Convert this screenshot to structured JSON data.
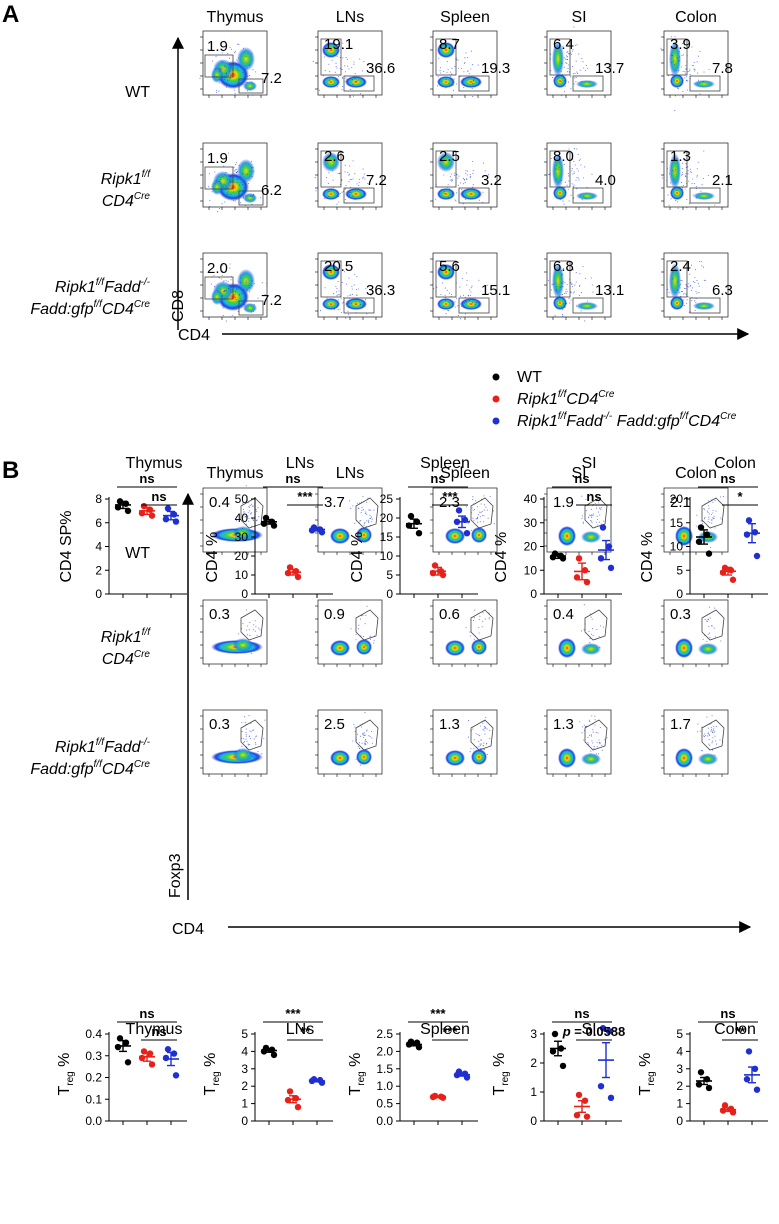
{
  "panels": [
    {
      "letter": "A",
      "tissues": [
        "Thymus",
        "LNs",
        "Spleen",
        "SI",
        "Colon"
      ],
      "rows": [
        {
          "label": [
            {
              "t": "WT"
            }
          ],
          "label2": []
        },
        {
          "label": [
            {
              "t": "Ripk1"
            },
            {
              "t": "f/f",
              "sup": true
            }
          ],
          "label2": [
            {
              "t": "CD4"
            },
            {
              "t": "Cre",
              "sup": true
            }
          ]
        },
        {
          "label": [
            {
              "t": "Ripk1"
            },
            {
              "t": "f/f",
              "sup": true
            },
            {
              "t": "Fadd"
            },
            {
              "t": "-/-",
              "sup": true
            }
          ],
          "label2": [
            {
              "t": "Fadd:gfp"
            },
            {
              "t": "f/f",
              "sup": true
            },
            {
              "t": "CD4"
            },
            {
              "t": "Cre",
              "sup": true
            }
          ]
        }
      ],
      "gate_values": [
        [
          [
            "1.9",
            "7.2"
          ],
          [
            "19.1",
            "36.6"
          ],
          [
            "8.7",
            "19.3"
          ],
          [
            "6.4",
            "13.7"
          ],
          [
            "3.9",
            "7.8"
          ]
        ],
        [
          [
            "1.9",
            "6.2"
          ],
          [
            "2.6",
            "7.2"
          ],
          [
            "2.5",
            "3.2"
          ],
          [
            "8.0",
            "4.0"
          ],
          [
            "1.3",
            "2.1"
          ]
        ],
        [
          [
            "2.0",
            "7.2"
          ],
          [
            "20.5",
            "36.3"
          ],
          [
            "5.6",
            "15.1"
          ],
          [
            "6.8",
            "13.1"
          ],
          [
            "2.4",
            "6.3"
          ]
        ]
      ],
      "y_axis_label": "CD8",
      "x_axis_label": "CD4"
    },
    {
      "letter": "B",
      "tissues": [
        "Thymus",
        "LNs",
        "Spleen",
        "SI",
        "Colon"
      ],
      "gate_values": [
        [
          "0.4",
          "3.7",
          "2.3",
          "1.9",
          "2.1"
        ],
        [
          "0.3",
          "0.9",
          "0.6",
          "0.4",
          "0.3"
        ],
        [
          "0.3",
          "2.5",
          "1.3",
          "1.3",
          "1.7"
        ]
      ],
      "y_axis_label": "Foxp3",
      "x_axis_label": "CD4"
    }
  ],
  "legend": [
    {
      "color": "#000000",
      "label": [
        {
          "t": "WT"
        }
      ]
    },
    {
      "color": "#e8201a",
      "label": [
        {
          "t": "Ripk1"
        },
        {
          "t": "f/f",
          "sup": true
        },
        {
          "t": "CD4"
        },
        {
          "t": "Cre",
          "sup": true
        }
      ]
    },
    {
      "color": "#1f2fd1",
      "label": [
        {
          "t": "Ripk1"
        },
        {
          "t": "f/f",
          "sup": true
        },
        {
          "t": "Fadd"
        },
        {
          "t": "-/-",
          "sup": true
        },
        {
          "t": " Fadd:gfp"
        },
        {
          "t": "f/f",
          "sup": true
        },
        {
          "t": "CD4"
        },
        {
          "t": "Cre",
          "sup": true
        }
      ]
    }
  ],
  "colors": {
    "wt": "#000000",
    "ripk1": "#e8201a",
    "triple": "#1f2fd1"
  },
  "chart_data": [
    {
      "type": "scatter",
      "title": "Thymus",
      "ylabel": "CD4 SP%",
      "ylim": [
        0,
        8
      ],
      "yticks": [
        0,
        2,
        4,
        6,
        8
      ],
      "groups": [
        {
          "color": "#000000",
          "points": [
            7.8,
            7.6,
            7.3,
            7.0
          ],
          "mean": 7.5,
          "sem": 0.3
        },
        {
          "color": "#e8201a",
          "points": [
            7.4,
            7.1,
            6.8,
            6.6
          ],
          "mean": 7.0,
          "sem": 0.3
        },
        {
          "color": "#1f2fd1",
          "points": [
            7.2,
            6.7,
            6.3,
            6.1
          ],
          "mean": 6.6,
          "sem": 0.35
        }
      ],
      "sig": [
        {
          "from": 0,
          "to": 2,
          "label": "ns"
        },
        {
          "from": 1,
          "to": 2,
          "label": "ns"
        }
      ]
    },
    {
      "type": "scatter",
      "title": "LNs",
      "ylabel": "CD4 %",
      "ylim": [
        0,
        50
      ],
      "yticks": [
        0,
        10,
        20,
        30,
        40,
        50
      ],
      "groups": [
        {
          "color": "#000000",
          "points": [
            40,
            38,
            37,
            36
          ],
          "mean": 38,
          "sem": 1.2
        },
        {
          "color": "#e8201a",
          "points": [
            14,
            12,
            11,
            9
          ],
          "mean": 11.5,
          "sem": 1.5
        },
        {
          "color": "#1f2fd1",
          "points": [
            35,
            34,
            33.5,
            32.5
          ],
          "mean": 34,
          "sem": 0.8
        }
      ],
      "sig": [
        {
          "from": 0,
          "to": 2,
          "label": "ns"
        },
        {
          "from": 1,
          "to": 2,
          "label": "***"
        }
      ]
    },
    {
      "type": "scatter",
      "title": "Spleen",
      "ylabel": "CD4 %",
      "ylim": [
        0,
        25
      ],
      "yticks": [
        0,
        5,
        10,
        15,
        20,
        25
      ],
      "groups": [
        {
          "color": "#000000",
          "points": [
            20.5,
            19,
            18,
            16
          ],
          "mean": 18.5,
          "sem": 1.2
        },
        {
          "color": "#e8201a",
          "points": [
            7.5,
            6,
            5.5,
            5
          ],
          "mean": 6,
          "sem": 1
        },
        {
          "color": "#1f2fd1",
          "points": [
            22,
            19.5,
            19,
            16
          ],
          "mean": 19,
          "sem": 1.5
        }
      ],
      "sig": [
        {
          "from": 0,
          "to": 2,
          "label": "ns"
        },
        {
          "from": 1,
          "to": 2,
          "label": "***"
        }
      ]
    },
    {
      "type": "scatter",
      "title": "SI",
      "ylabel": "CD4 %",
      "ylim": [
        0,
        40
      ],
      "yticks": [
        0,
        10,
        20,
        30,
        40
      ],
      "groups": [
        {
          "color": "#000000",
          "points": [
            17,
            16,
            15.5,
            15
          ],
          "mean": 16,
          "sem": 1
        },
        {
          "color": "#e8201a",
          "points": [
            15,
            10,
            7,
            5
          ],
          "mean": 9.5,
          "sem": 3.5
        },
        {
          "color": "#1f2fd1",
          "points": [
            28,
            20,
            15,
            11
          ],
          "mean": 18.5,
          "sem": 4
        }
      ],
      "sig": [
        {
          "from": 0,
          "to": 2,
          "label": "ns"
        },
        {
          "from": 1,
          "to": 2,
          "label": "ns"
        }
      ]
    },
    {
      "type": "scatter",
      "title": "Colon",
      "ylabel": "CD4 %",
      "ylim": [
        0,
        20
      ],
      "yticks": [
        0,
        5,
        10,
        15,
        20
      ],
      "groups": [
        {
          "color": "#000000",
          "points": [
            14,
            12.5,
            11,
            8.5
          ],
          "mean": 12,
          "sem": 1.5
        },
        {
          "color": "#e8201a",
          "points": [
            5.5,
            5,
            4.5,
            3
          ],
          "mean": 4.8,
          "sem": 0.8
        },
        {
          "color": "#1f2fd1",
          "points": [
            15.5,
            13,
            12.5,
            8
          ],
          "mean": 12.8,
          "sem": 2
        }
      ],
      "sig": [
        {
          "from": 0,
          "to": 2,
          "label": "ns"
        },
        {
          "from": 1,
          "to": 2,
          "label": "*"
        }
      ]
    },
    {
      "type": "scatter",
      "title": "Thymus",
      "ylabel_main": "T",
      "ylabel_sub": "reg",
      "ylabel_suffix": " %",
      "ylim": [
        0,
        0.4
      ],
      "yticks": [
        0.0,
        0.1,
        0.2,
        0.3,
        0.4
      ],
      "tickfmt": 1,
      "groups": [
        {
          "color": "#000000",
          "points": [
            0.38,
            0.36,
            0.34,
            0.27
          ],
          "mean": 0.345,
          "sem": 0.025
        },
        {
          "color": "#e8201a",
          "points": [
            0.32,
            0.31,
            0.29,
            0.26
          ],
          "mean": 0.295,
          "sem": 0.02
        },
        {
          "color": "#1f2fd1",
          "points": [
            0.33,
            0.31,
            0.29,
            0.21
          ],
          "mean": 0.285,
          "sem": 0.03
        }
      ],
      "sig": [
        {
          "from": 0,
          "to": 2,
          "label": "ns"
        },
        {
          "from": 1,
          "to": 2,
          "label": "ns"
        }
      ]
    },
    {
      "type": "scatter",
      "title": "LNs",
      "ylabel_main": "T",
      "ylabel_sub": "reg",
      "ylabel_suffix": " %",
      "ylim": [
        0,
        5
      ],
      "yticks": [
        0,
        1,
        2,
        3,
        4,
        5
      ],
      "groups": [
        {
          "color": "#000000",
          "points": [
            4.2,
            4.1,
            4.0,
            3.8
          ],
          "mean": 4.05,
          "sem": 0.1
        },
        {
          "color": "#e8201a",
          "points": [
            1.7,
            1.3,
            1.2,
            0.8
          ],
          "mean": 1.25,
          "sem": 0.2
        },
        {
          "color": "#1f2fd1",
          "points": [
            2.4,
            2.35,
            2.3,
            2.2
          ],
          "mean": 2.3,
          "sem": 0.05
        }
      ],
      "sig": [
        {
          "from": 0,
          "to": 2,
          "label": "***"
        },
        {
          "from": 1,
          "to": 2,
          "label": "**"
        }
      ]
    },
    {
      "type": "scatter",
      "title": "Spleen",
      "ylabel_main": "T",
      "ylabel_sub": "reg",
      "ylabel_suffix": " %",
      "ylim": [
        0,
        2.5
      ],
      "yticks": [
        0.0,
        0.5,
        1.0,
        1.5,
        2.0,
        2.5
      ],
      "tickfmt": 1,
      "groups": [
        {
          "color": "#000000",
          "points": [
            2.28,
            2.25,
            2.2,
            2.12
          ],
          "mean": 2.2,
          "sem": 0.04
        },
        {
          "color": "#e8201a",
          "points": [
            0.72,
            0.7,
            0.69,
            0.67
          ],
          "mean": 0.7,
          "sem": 0.02
        },
        {
          "color": "#1f2fd1",
          "points": [
            1.42,
            1.36,
            1.32,
            1.25
          ],
          "mean": 1.33,
          "sem": 0.04
        }
      ],
      "sig": [
        {
          "from": 0,
          "to": 2,
          "label": "***"
        },
        {
          "from": 1,
          "to": 2,
          "label": "***"
        }
      ]
    },
    {
      "type": "scatter",
      "title": "SI",
      "ylabel_main": "T",
      "ylabel_sub": "reg",
      "ylabel_suffix": " %",
      "ylim": [
        0,
        3
      ],
      "yticks": [
        0,
        1,
        2,
        3
      ],
      "groups": [
        {
          "color": "#000000",
          "points": [
            3.0,
            2.5,
            2.4,
            1.9
          ],
          "mean": 2.5,
          "sem": 0.25
        },
        {
          "color": "#e8201a",
          "points": [
            0.9,
            0.7,
            0.2,
            0.15
          ],
          "mean": 0.5,
          "sem": 0.2
        },
        {
          "color": "#1f2fd1",
          "points": [
            3.2,
            3.1,
            1.2,
            0.8
          ],
          "mean": 2.1,
          "sem": 0.6
        }
      ],
      "sig": [
        {
          "from": 0,
          "to": 2,
          "label": "ns"
        },
        {
          "from": 1,
          "to": 2,
          "label_prefix": "p",
          "label": " = 0.0588"
        }
      ]
    },
    {
      "type": "scatter",
      "title": "Colon",
      "ylabel_main": "T",
      "ylabel_sub": "reg",
      "ylabel_suffix": " %",
      "ylim": [
        0,
        5
      ],
      "yticks": [
        0,
        1,
        2,
        3,
        4,
        5
      ],
      "groups": [
        {
          "color": "#000000",
          "points": [
            2.8,
            2.4,
            2.1,
            1.9
          ],
          "mean": 2.3,
          "sem": 0.2
        },
        {
          "color": "#e8201a",
          "points": [
            0.9,
            0.7,
            0.6,
            0.5
          ],
          "mean": 0.65,
          "sem": 0.1
        },
        {
          "color": "#1f2fd1",
          "points": [
            4.0,
            3.0,
            2.4,
            1.8
          ],
          "mean": 2.65,
          "sem": 0.45
        }
      ],
      "sig": [
        {
          "from": 0,
          "to": 2,
          "label": "ns"
        },
        {
          "from": 1,
          "to": 2,
          "label": "**"
        }
      ]
    }
  ]
}
